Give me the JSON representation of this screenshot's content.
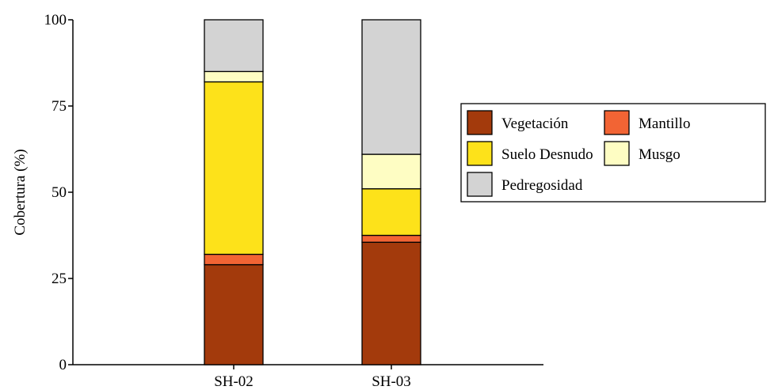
{
  "chart_data": {
    "type": "bar",
    "stacked": true,
    "categories": [
      "SH-02",
      "SH-03"
    ],
    "series": [
      {
        "name": "Vegetación",
        "color": "#a33a0c",
        "values": [
          29,
          35.5
        ]
      },
      {
        "name": "Mantillo",
        "color": "#f26434",
        "values": [
          3,
          2
        ]
      },
      {
        "name": "Suelo Desnudo",
        "color": "#fde21a",
        "values": [
          50,
          13.5
        ]
      },
      {
        "name": "Musgo",
        "color": "#fefdc3",
        "values": [
          3,
          10
        ]
      },
      {
        "name": "Pedregosidad",
        "color": "#d3d3d3",
        "values": [
          15,
          39
        ]
      }
    ],
    "ylabel": "Cobertura (%)",
    "ylim": [
      0,
      100
    ],
    "yticks": [
      0,
      25,
      50,
      75,
      100
    ],
    "grid": false,
    "legend_position": "right"
  }
}
